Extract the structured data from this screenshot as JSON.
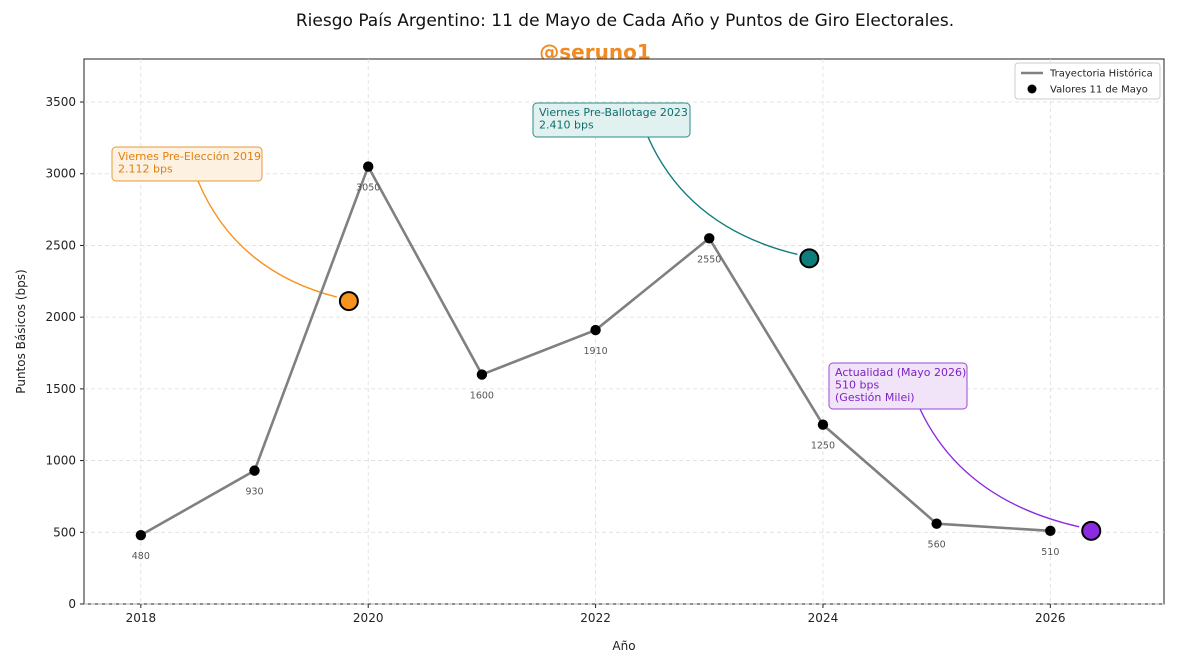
{
  "chart_data": {
    "type": "line",
    "title": "Riesgo País Argentino: 11 de Mayo de Cada Año y Puntos de Giro Electorales.",
    "subtitle": "@seruno1",
    "xlabel": "Año",
    "ylabel": "Puntos Básicos (bps)",
    "xlim": [
      2017.5,
      2027.0
    ],
    "ylim": [
      0,
      3800
    ],
    "xticks": [
      2018,
      2020,
      2022,
      2024,
      2026
    ],
    "yticks": [
      0,
      500,
      1000,
      1500,
      2000,
      2500,
      3000,
      3500
    ],
    "grid": true,
    "legend_position": "top-right",
    "legend": [
      {
        "label": "Trayectoria Histórica",
        "kind": "line",
        "color": "#808080"
      },
      {
        "label": "Valores 11 de Mayo",
        "kind": "marker",
        "color": "#000000"
      }
    ],
    "series": [
      {
        "name": "Trayectoria Histórica",
        "color": "#808080",
        "x": [
          2018,
          2019,
          2020,
          2021,
          2022,
          2023,
          2024,
          2025,
          2026
        ],
        "y": [
          480,
          930,
          3050,
          1600,
          1910,
          2550,
          1250,
          560,
          510
        ],
        "labels": [
          "480",
          "930",
          "3050",
          "1600",
          "1910",
          "2550",
          "1250",
          "560",
          "510"
        ]
      }
    ],
    "highlights": [
      {
        "x": 2019.83,
        "y": 2112,
        "color": "#f7931e",
        "text": [
          "Viernes Pre-Elección 2019",
          "2.112 bps"
        ],
        "box_fill": "#fdf1e1",
        "box_stroke": "#e59a3c",
        "text_color": "#e07f12"
      },
      {
        "x": 2023.88,
        "y": 2410,
        "color": "#0e7c7b",
        "text": [
          "Viernes Pre-Ballotage 2023",
          "2.410 bps"
        ],
        "box_fill": "#e1f1f0",
        "box_stroke": "#2a8a88",
        "text_color": "#0e6e6d"
      },
      {
        "x": 2026.36,
        "y": 510,
        "color": "#8a2be2",
        "text": [
          "Actualidad (Mayo 2026)",
          "510 bps",
          "(Gestión Milei)"
        ],
        "box_fill": "#f1e4f8",
        "box_stroke": "#9b47d6",
        "text_color": "#7d22c4"
      }
    ],
    "colors": {
      "handle": "#f08a24",
      "line": "#808080",
      "marker": "#000000"
    }
  }
}
